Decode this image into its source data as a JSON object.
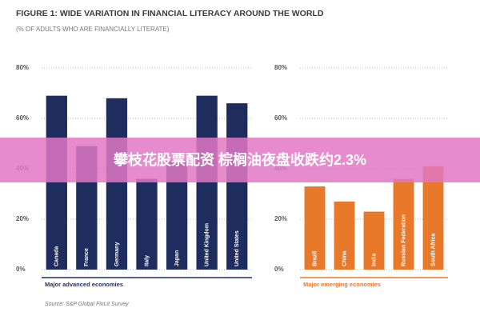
{
  "title": "FIGURE 1: WIDE VARIATION IN FINANCIAL LITERACY AROUND THE WORLD",
  "subtitle": "(% OF ADULTS WHO ARE FINANCIALLY LITERATE)",
  "source": "Source: S&P Global FinLit Survey",
  "banner": "攀枝花股票配资 棕榈油夜盘收跌约2.3%",
  "chart_data": [
    {
      "type": "bar",
      "xlabel": "Major advanced economies",
      "categories": [
        "Canada",
        "France",
        "Germany",
        "Italy",
        "Japan",
        "United Kingdom",
        "United States"
      ],
      "values": [
        69,
        49,
        68,
        36,
        43,
        69,
        66
      ],
      "color": "#1f2d5e",
      "ylim": [
        0,
        80
      ],
      "yticks": [
        {
          "value": 0,
          "label": "0%"
        },
        {
          "value": 20,
          "label": "20%"
        },
        {
          "value": 40,
          "label": "40%"
        },
        {
          "value": 60,
          "label": "60%"
        },
        {
          "value": 80,
          "label": "80%"
        }
      ],
      "grid": true
    },
    {
      "type": "bar",
      "xlabel": "Major emerging economies",
      "categories": [
        "Brazil",
        "China",
        "India",
        "Russian Federation",
        "South Africa"
      ],
      "values": [
        33,
        27,
        23,
        36,
        41
      ],
      "color": "#e8792b",
      "ylim": [
        0,
        80
      ],
      "yticks": [
        {
          "value": 0,
          "label": "0%"
        },
        {
          "value": 20,
          "label": "20%"
        },
        {
          "value": 40,
          "label": "40%"
        },
        {
          "value": 60,
          "label": "60%"
        },
        {
          "value": 80,
          "label": "80%"
        }
      ],
      "grid": true
    }
  ]
}
